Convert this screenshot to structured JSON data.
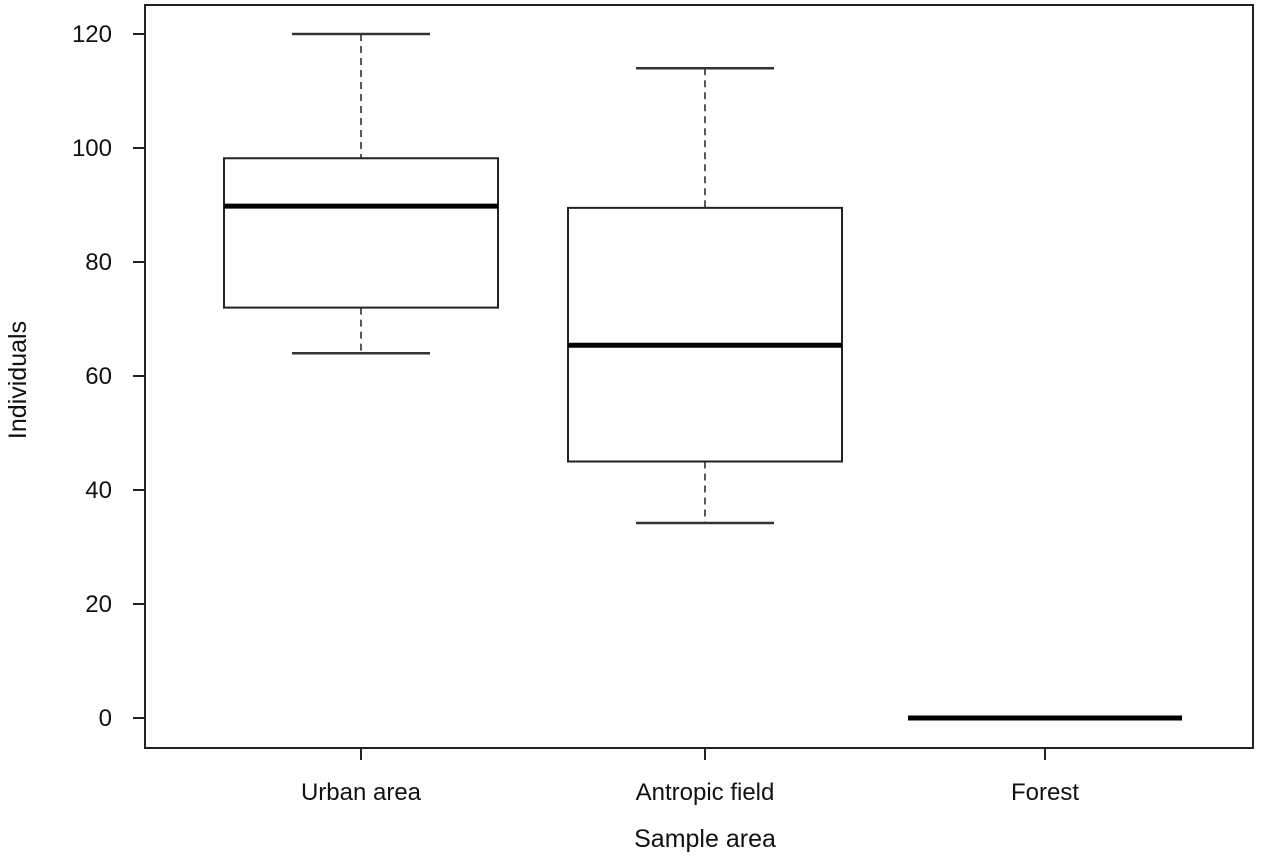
{
  "chart_data": {
    "type": "boxplot",
    "title": "",
    "xlabel": "Sample area",
    "ylabel": "Individuals",
    "ylim": [
      -5,
      125
    ],
    "yticks": [
      "0",
      "20",
      "40",
      "60",
      "80",
      "100",
      "120"
    ],
    "grid": false,
    "categories": [
      "Urban area",
      "Antropic field",
      "Forest"
    ],
    "boxes": [
      {
        "category": "Urban area",
        "min": 64,
        "q1": 72,
        "median": 89.8,
        "q3": 98.2,
        "max": 120
      },
      {
        "category": "Antropic field",
        "min": 34.2,
        "q1": 45,
        "median": 65.4,
        "q3": 89.5,
        "max": 114
      },
      {
        "category": "Forest",
        "min": 0,
        "q1": 0,
        "median": 0,
        "q3": 0,
        "max": 0
      }
    ],
    "colors": {
      "box_fill": "#ffffff",
      "stroke": "#000000"
    }
  }
}
